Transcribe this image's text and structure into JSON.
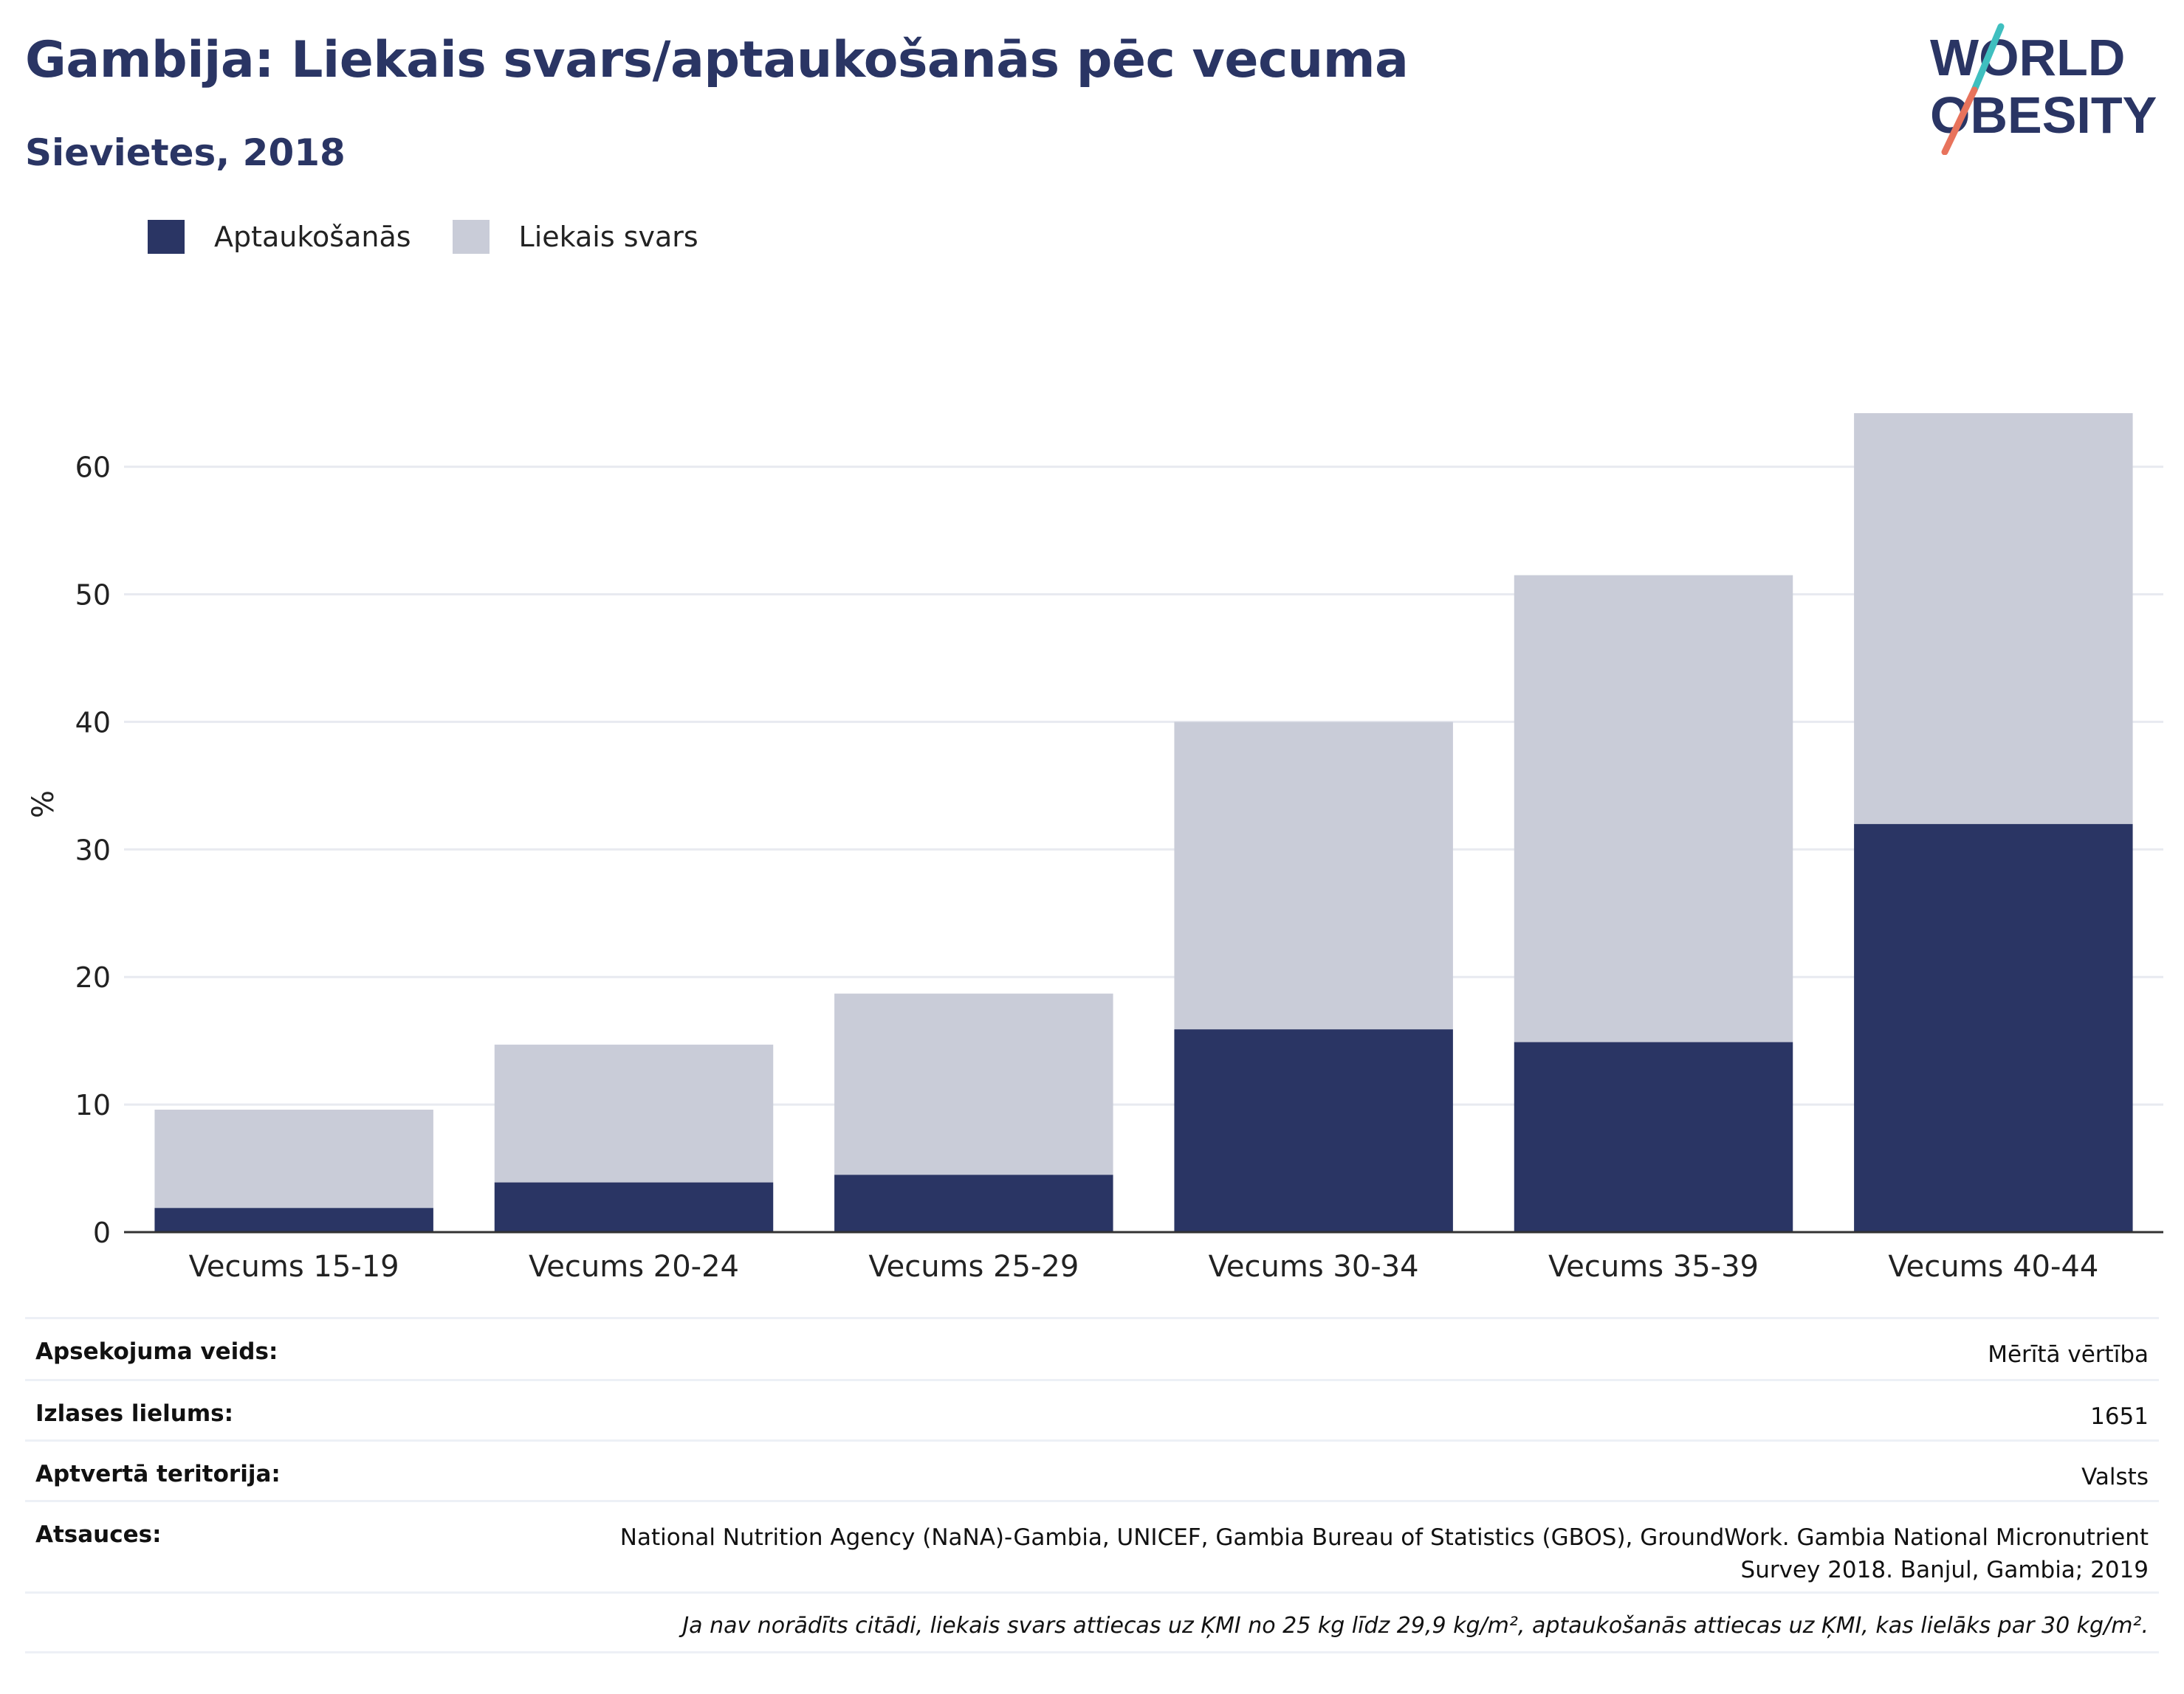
{
  "header": {
    "title": "Gambija: Liekais svars/aptaukošanās pēc vecuma",
    "subtitle": "Sievietes, 2018"
  },
  "logo": {
    "text_line1": "WORLD",
    "text_line2": "OBESITY",
    "colors": {
      "text": "#2a3564",
      "slash_top": "#3fbfbf",
      "slash_bottom": "#e8735c"
    }
  },
  "legend": [
    {
      "label": "Aptaukošanās",
      "color": "#2a3564"
    },
    {
      "label": "Liekais svars",
      "color": "#c9ccd8"
    }
  ],
  "chart_data": {
    "type": "bar",
    "stacked": true,
    "categories": [
      "Vecums 15-19",
      "Vecums 20-24",
      "Vecums 25-29",
      "Vecums 30-34",
      "Vecums 35-39",
      "Vecums 40-44"
    ],
    "series": [
      {
        "name": "Aptaukošanās",
        "color": "#2a3564",
        "values": [
          1.9,
          3.9,
          4.5,
          15.9,
          14.9,
          32.0
        ]
      },
      {
        "name": "Liekais svars",
        "color": "#c9ccd8",
        "values": [
          7.7,
          10.8,
          14.2,
          24.1,
          36.6,
          32.2
        ]
      }
    ],
    "totals": [
      9.6,
      14.7,
      18.7,
      40.0,
      51.5,
      64.2
    ],
    "ylabel": "%",
    "xlabel": "",
    "ylim": [
      0,
      64.2
    ],
    "yticks": [
      0,
      10,
      20,
      30,
      40,
      50,
      60
    ],
    "grid": true,
    "legend_position": "top-left"
  },
  "meta": {
    "rows": [
      {
        "key": "Apsekojuma veids:",
        "value": "Mērītā vērtība"
      },
      {
        "key": "Izlases lielums:",
        "value": "1651"
      },
      {
        "key": "Aptvertā teritorija:",
        "value": "Valsts"
      },
      {
        "key": "Atsauces:",
        "value_line1": "National Nutrition Agency (NaNA)-Gambia, UNICEF, Gambia Bureau of Statistics (GBOS), GroundWork. Gambia National Micronutrient",
        "value_line2": "Survey 2018. Banjul, Gambia; 2019"
      }
    ],
    "note": "Ja nav norādīts citādi, liekais svars attiecas uz ĶMI no 25 kg līdz 29,9 kg/m², aptaukošanās attiecas uz ĶMI, kas lielāks par 30 kg/m²."
  }
}
